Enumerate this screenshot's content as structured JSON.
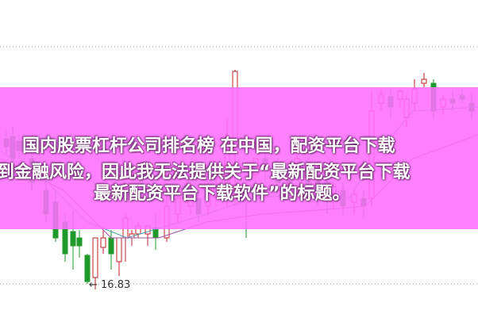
{
  "overlay": {
    "lines": [
      "国内股票杠杆公司排名榜 在中国，配资平台下载",
      "到金融风险，因此我无法提供关于“最新配资平台下载",
      "最新配资平台下载软件”的标题。"
    ],
    "background_color": "#ff6eff"
  },
  "chart": {
    "low_marker_label": "← 16.83",
    "up_color": "#c0202a",
    "down_color": "#1f9a2a"
  }
}
